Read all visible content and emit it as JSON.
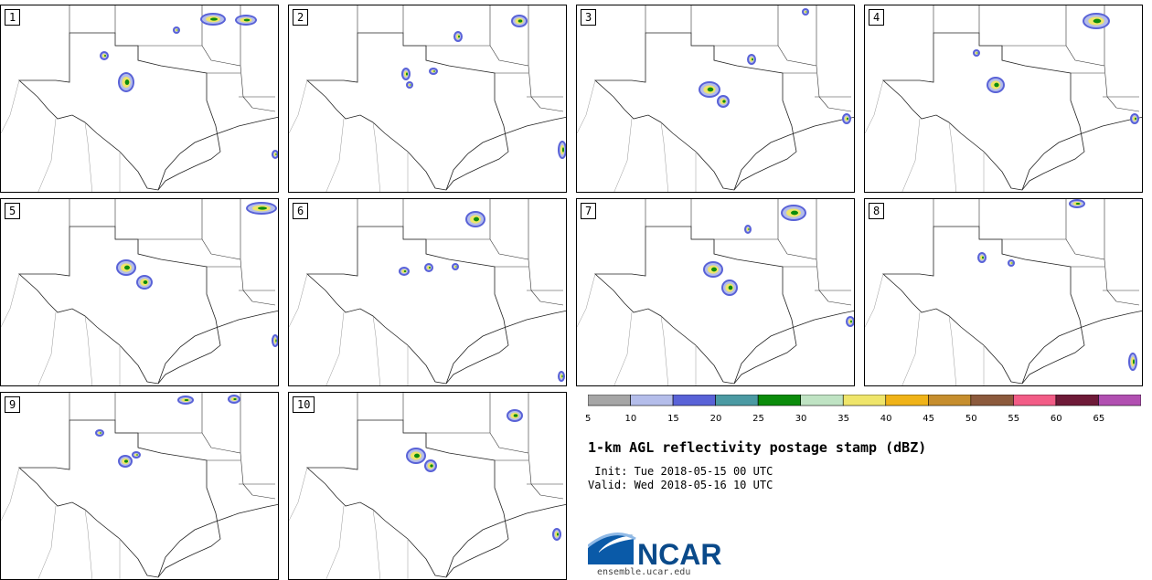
{
  "panels": [
    {
      "label": "1",
      "cells": [
        [
          130,
          75,
          14,
          18
        ],
        [
          110,
          52,
          6,
          6
        ],
        [
          190,
          25,
          4,
          4
        ],
        [
          220,
          10,
          24,
          10
        ],
        [
          258,
          12,
          20,
          8
        ],
        [
          298,
          160,
          4,
          6
        ]
      ]
    },
    {
      "label": "2",
      "cells": [
        [
          125,
          70,
          6,
          10
        ],
        [
          155,
          70,
          6,
          4
        ],
        [
          130,
          85,
          4,
          4
        ],
        [
          182,
          30,
          6,
          8
        ],
        [
          245,
          12,
          14,
          10
        ],
        [
          296,
          150,
          6,
          16
        ]
      ]
    },
    {
      "label": "3",
      "cells": [
        [
          135,
          85,
          20,
          14
        ],
        [
          155,
          100,
          10,
          10
        ],
        [
          188,
          55,
          6,
          8
        ],
        [
          248,
          5,
          4,
          4
        ],
        [
          292,
          120,
          6,
          8
        ]
      ]
    },
    {
      "label": "4",
      "cells": [
        [
          135,
          80,
          16,
          14
        ],
        [
          240,
          10,
          26,
          14
        ],
        [
          120,
          50,
          4,
          4
        ],
        [
          292,
          120,
          6,
          8
        ]
      ]
    },
    {
      "label": "5",
      "cells": [
        [
          128,
          68,
          18,
          14
        ],
        [
          150,
          85,
          14,
          12
        ],
        [
          270,
          5,
          30,
          10
        ],
        [
          298,
          150,
          4,
          10
        ]
      ]
    },
    {
      "label": "6",
      "cells": [
        [
          195,
          15,
          18,
          14
        ],
        [
          122,
          76,
          8,
          6
        ],
        [
          150,
          72,
          6,
          6
        ],
        [
          180,
          72,
          4,
          4
        ],
        [
          296,
          190,
          4,
          8
        ]
      ]
    },
    {
      "label": "7",
      "cells": [
        [
          140,
          70,
          18,
          14
        ],
        [
          160,
          90,
          14,
          14
        ],
        [
          225,
          8,
          24,
          14
        ],
        [
          185,
          30,
          4,
          6
        ],
        [
          296,
          130,
          6,
          8
        ]
      ]
    },
    {
      "label": "8",
      "cells": [
        [
          125,
          60,
          6,
          8
        ],
        [
          158,
          68,
          4,
          4
        ],
        [
          225,
          2,
          14,
          6
        ],
        [
          290,
          170,
          6,
          16
        ]
      ]
    },
    {
      "label": "9",
      "cells": [
        [
          130,
          70,
          12,
          10
        ],
        [
          145,
          66,
          6,
          4
        ],
        [
          105,
          42,
          6,
          4
        ],
        [
          195,
          5,
          14,
          6
        ],
        [
          250,
          4,
          10,
          6
        ]
      ]
    },
    {
      "label": "10",
      "cells": [
        [
          130,
          62,
          18,
          14
        ],
        [
          150,
          75,
          10,
          10
        ],
        [
          240,
          20,
          14,
          10
        ],
        [
          290,
          150,
          6,
          10
        ]
      ]
    }
  ],
  "colorbar": {
    "colors": [
      "#a6a6a6",
      "#b4bdea",
      "#5962d7",
      "#4b9aa3",
      "#0b8c0b",
      "#bfe3c3",
      "#efe56a",
      "#f0b318",
      "#c68e2e",
      "#8c5a3c",
      "#f25c86",
      "#6e1a38",
      "#b14fb1"
    ],
    "ticks": [
      "5",
      "10",
      "15",
      "20",
      "25",
      "30",
      "35",
      "40",
      "45",
      "50",
      "55",
      "60",
      "65"
    ]
  },
  "title": "1-km AGL reflectivity postage stamp (dBZ)",
  "init_line": " Init: Tue 2018-05-15 00 UTC",
  "valid_line": "Valid: Wed 2018-05-16 10 UTC",
  "logo_text": "NCAR",
  "url": "ensemble.ucar.edu"
}
